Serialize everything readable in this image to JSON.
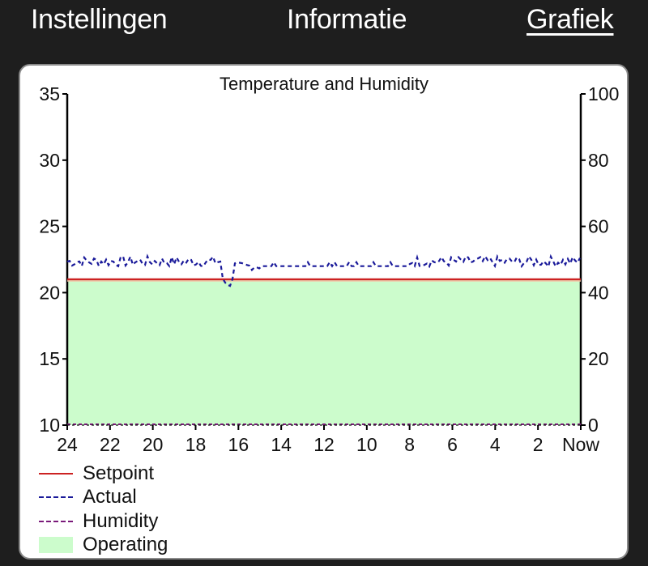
{
  "tabs": [
    {
      "label": "Instellingen",
      "active": false
    },
    {
      "label": "Informatie",
      "active": false
    },
    {
      "label": "Grafiek",
      "active": true
    }
  ],
  "chart": {
    "title": "Temperature and Humidity",
    "left_axis_ticks": [
      "35",
      "30",
      "25",
      "20",
      "15",
      "10"
    ],
    "right_axis_ticks": [
      "100",
      "80",
      "60",
      "40",
      "20",
      "0"
    ],
    "x_axis_ticks": [
      "24",
      "22",
      "20",
      "18",
      "16",
      "14",
      "12",
      "10",
      "8",
      "6",
      "4",
      "2",
      "Now"
    ]
  },
  "legend": {
    "items": [
      {
        "label": "Setpoint",
        "color": "#cc2222",
        "style": "solid"
      },
      {
        "label": "Actual",
        "color": "#1a1a9a",
        "style": "dashed"
      },
      {
        "label": "Humidity",
        "color": "#7a1a7a",
        "style": "dashed"
      },
      {
        "label": "Operating",
        "color": "#ccfccc",
        "style": "fill"
      }
    ]
  },
  "chart_data": {
    "type": "line",
    "title": "Temperature and Humidity",
    "xlabel": "",
    "ylabel": "",
    "x": [
      24,
      22,
      20,
      18,
      16,
      14,
      12,
      10,
      8,
      6,
      4,
      2,
      0
    ],
    "x_tick_labels": [
      "24",
      "22",
      "20",
      "18",
      "16",
      "14",
      "12",
      "10",
      "8",
      "6",
      "4",
      "2",
      "Now"
    ],
    "x_unit": "hours ago",
    "ylim_left": [
      10,
      35
    ],
    "ylim_right": [
      0,
      100
    ],
    "grid": false,
    "legend_position": "bottom-left",
    "series": [
      {
        "name": "Setpoint",
        "axis": "left",
        "style": "solid",
        "color": "#cc2222",
        "values": [
          21,
          21,
          21,
          21,
          21,
          21,
          21,
          21,
          21,
          21,
          21,
          21,
          21
        ]
      },
      {
        "name": "Actual",
        "axis": "left",
        "style": "dashed",
        "color": "#1a1a9a",
        "values": [
          22.2,
          22.2,
          22.3,
          22.4,
          22.0,
          22.0,
          22.0,
          22.1,
          22.2,
          22.2,
          22.3,
          22.3,
          22.0
        ],
        "notes": "noisy around 22-22.8; brief dip to ~20.2 near 16.5h ago; flat ~22.0 from 15h to 8h ago"
      },
      {
        "name": "Humidity",
        "axis": "right",
        "style": "dashed",
        "color": "#7a1a7a",
        "values": [
          0,
          0,
          0,
          0,
          0,
          0,
          0,
          0,
          0,
          0,
          0,
          0,
          0
        ]
      },
      {
        "name": "Operating",
        "axis": "left",
        "style": "area",
        "color": "#ccfccc",
        "values": [
          21,
          21,
          21,
          21,
          21,
          21,
          21,
          21,
          21,
          21,
          21,
          21,
          21
        ]
      }
    ]
  }
}
